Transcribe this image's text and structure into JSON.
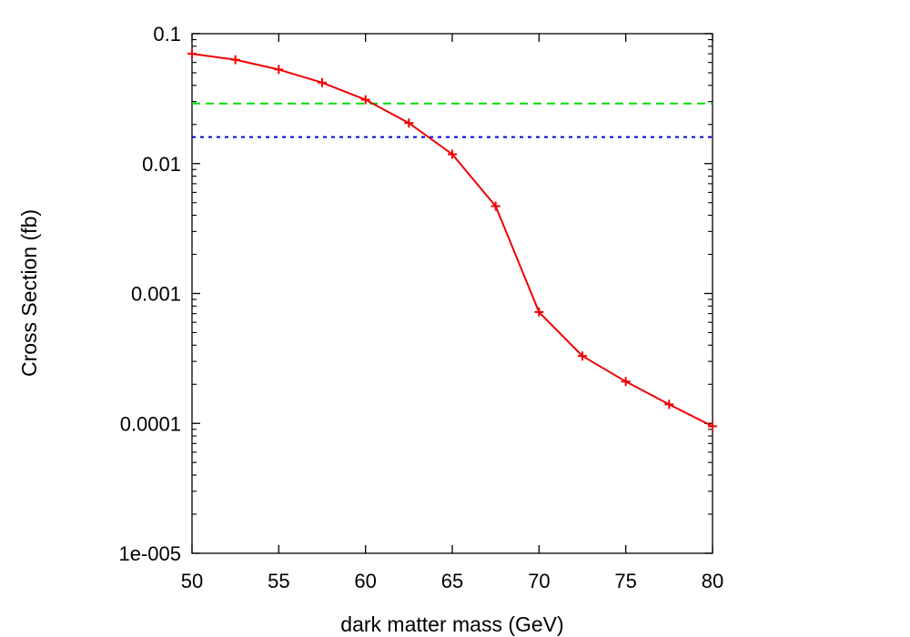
{
  "chart_data": {
    "type": "line",
    "title": "",
    "xlabel": "dark matter mass (GeV)",
    "ylabel": "Cross Section (fb)",
    "xlim": [
      50,
      80
    ],
    "ylim": [
      1e-05,
      0.1
    ],
    "yscale": "log",
    "grid": false,
    "legend": "none",
    "x_ticks": [
      50,
      55,
      60,
      65,
      70,
      75,
      80
    ],
    "x_tick_labels": [
      "50",
      "55",
      "60",
      "65",
      "70",
      "75",
      "80"
    ],
    "y_ticks": [
      0.1,
      0.01,
      0.001,
      0.0001,
      1e-05
    ],
    "y_tick_labels": [
      "0.1",
      "0.01",
      "0.001",
      "0.0001",
      "1e-005"
    ],
    "series": [
      {
        "style": "solid-with-plus-markers",
        "color": "#ee0000",
        "x": [
          50,
          52.5,
          55,
          57.5,
          60,
          62.5,
          65,
          67.5,
          70,
          72.5,
          75,
          77.5,
          80
        ],
        "y": [
          0.07,
          0.063,
          0.053,
          0.042,
          0.031,
          0.0205,
          0.0118,
          0.0047,
          0.00072,
          0.00033,
          0.00021,
          0.00014,
          9.5e-05
        ]
      }
    ],
    "reference_lines": [
      {
        "style": "dashed",
        "color": "#00dd00",
        "y": 0.029
      },
      {
        "style": "dotted",
        "color": "#0000dd",
        "y": 0.016
      }
    ]
  }
}
